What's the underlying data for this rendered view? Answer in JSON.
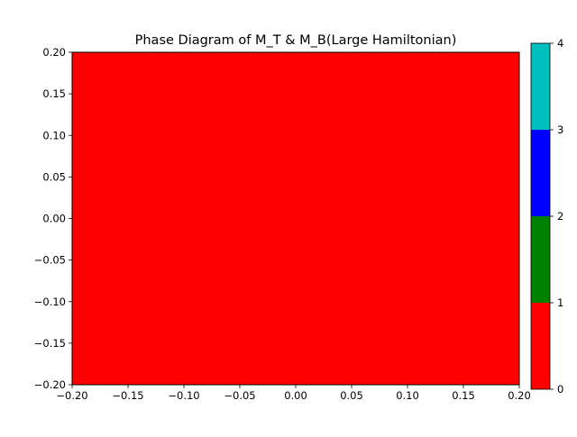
{
  "chart_data": {
    "type": "heatmap",
    "title": "Phase Diagram of M_T & M_B(Large Hamiltonian)",
    "xlabel": "",
    "ylabel": "",
    "xlim": [
      -0.2,
      0.2
    ],
    "ylim": [
      -0.2,
      0.2
    ],
    "x_ticks": [
      -0.2,
      -0.15,
      -0.1,
      -0.05,
      0.0,
      0.05,
      0.1,
      0.15,
      0.2
    ],
    "x_tick_labels": [
      "−0.20",
      "−0.15",
      "−0.10",
      "−0.05",
      "0.00",
      "0.05",
      "0.10",
      "0.15",
      "0.20"
    ],
    "y_ticks": [
      -0.2,
      -0.15,
      -0.1,
      -0.05,
      0.0,
      0.05,
      0.1,
      0.15,
      0.2
    ],
    "y_tick_labels": [
      "−0.20",
      "−0.15",
      "−0.10",
      "−0.05",
      "0.00",
      "0.05",
      "0.10",
      "0.15",
      "0.20"
    ],
    "grid": false,
    "regions": [
      {
        "x_range": [
          -0.2,
          0.2
        ],
        "y_range": [
          -0.2,
          0.2
        ],
        "value": 0,
        "color": "#ff0000"
      }
    ],
    "colorbar": {
      "range": [
        0,
        4
      ],
      "bins": [
        {
          "from": 0,
          "to": 1,
          "color": "#ff0000"
        },
        {
          "from": 1,
          "to": 2,
          "color": "#008000"
        },
        {
          "from": 2,
          "to": 3,
          "color": "#0000ff"
        },
        {
          "from": 3,
          "to": 4,
          "color": "#00bfbf"
        }
      ],
      "ticks": [
        0,
        1,
        2,
        3,
        4
      ],
      "tick_labels": [
        "0",
        "1",
        "2",
        "3",
        "4"
      ]
    }
  }
}
